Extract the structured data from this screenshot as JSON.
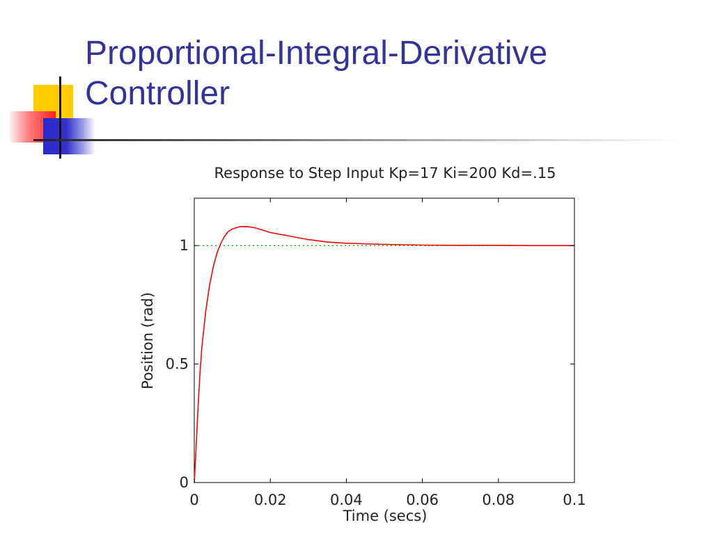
{
  "slide": {
    "title_line1": "Proportional-Integral-Derivative",
    "title_line2": "Controller"
  },
  "chart_data": {
    "type": "line",
    "title": "Response to Step Input Kp=17 Ki=200 Kd=.15",
    "xlabel": "Time (secs)",
    "ylabel": "Position (rad)",
    "xlim": [
      0,
      0.1
    ],
    "ylim": [
      0,
      1.2
    ],
    "xticks": [
      0,
      0.02,
      0.04,
      0.06,
      0.08,
      0.1
    ],
    "xtick_labels": [
      "0",
      "0.02",
      "0.04",
      "0.06",
      "0.08",
      "0.1"
    ],
    "yticks": [
      0,
      0.5,
      1
    ],
    "ytick_labels": [
      "0",
      "0.5",
      "1"
    ],
    "grid": false,
    "series": [
      {
        "color": "#ff0000",
        "style": "solid",
        "x": [
          0,
          0.0005,
          0.001,
          0.0015,
          0.002,
          0.003,
          0.004,
          0.005,
          0.006,
          0.007,
          0.008,
          0.009,
          0.01,
          0.011,
          0.012,
          0.013,
          0.014,
          0.016,
          0.018,
          0.02,
          0.025,
          0.03,
          0.035,
          0.04,
          0.05,
          0.06,
          0.07,
          0.08,
          0.09,
          0.1
        ],
        "y": [
          0,
          0.15,
          0.32,
          0.46,
          0.57,
          0.72,
          0.83,
          0.91,
          0.97,
          1.01,
          1.04,
          1.06,
          1.07,
          1.075,
          1.08,
          1.08,
          1.08,
          1.075,
          1.065,
          1.055,
          1.04,
          1.025,
          1.015,
          1.01,
          1.005,
          1.002,
          1.001,
          1.001,
          1.0,
          1.0
        ]
      },
      {
        "color": "#00cc00",
        "style": "dotted",
        "x": [
          0,
          0.1
        ],
        "y": [
          1,
          1
        ]
      }
    ]
  },
  "colors": {
    "title": "#333399",
    "response_line": "#ff0000",
    "reference_line": "#00cc00"
  }
}
